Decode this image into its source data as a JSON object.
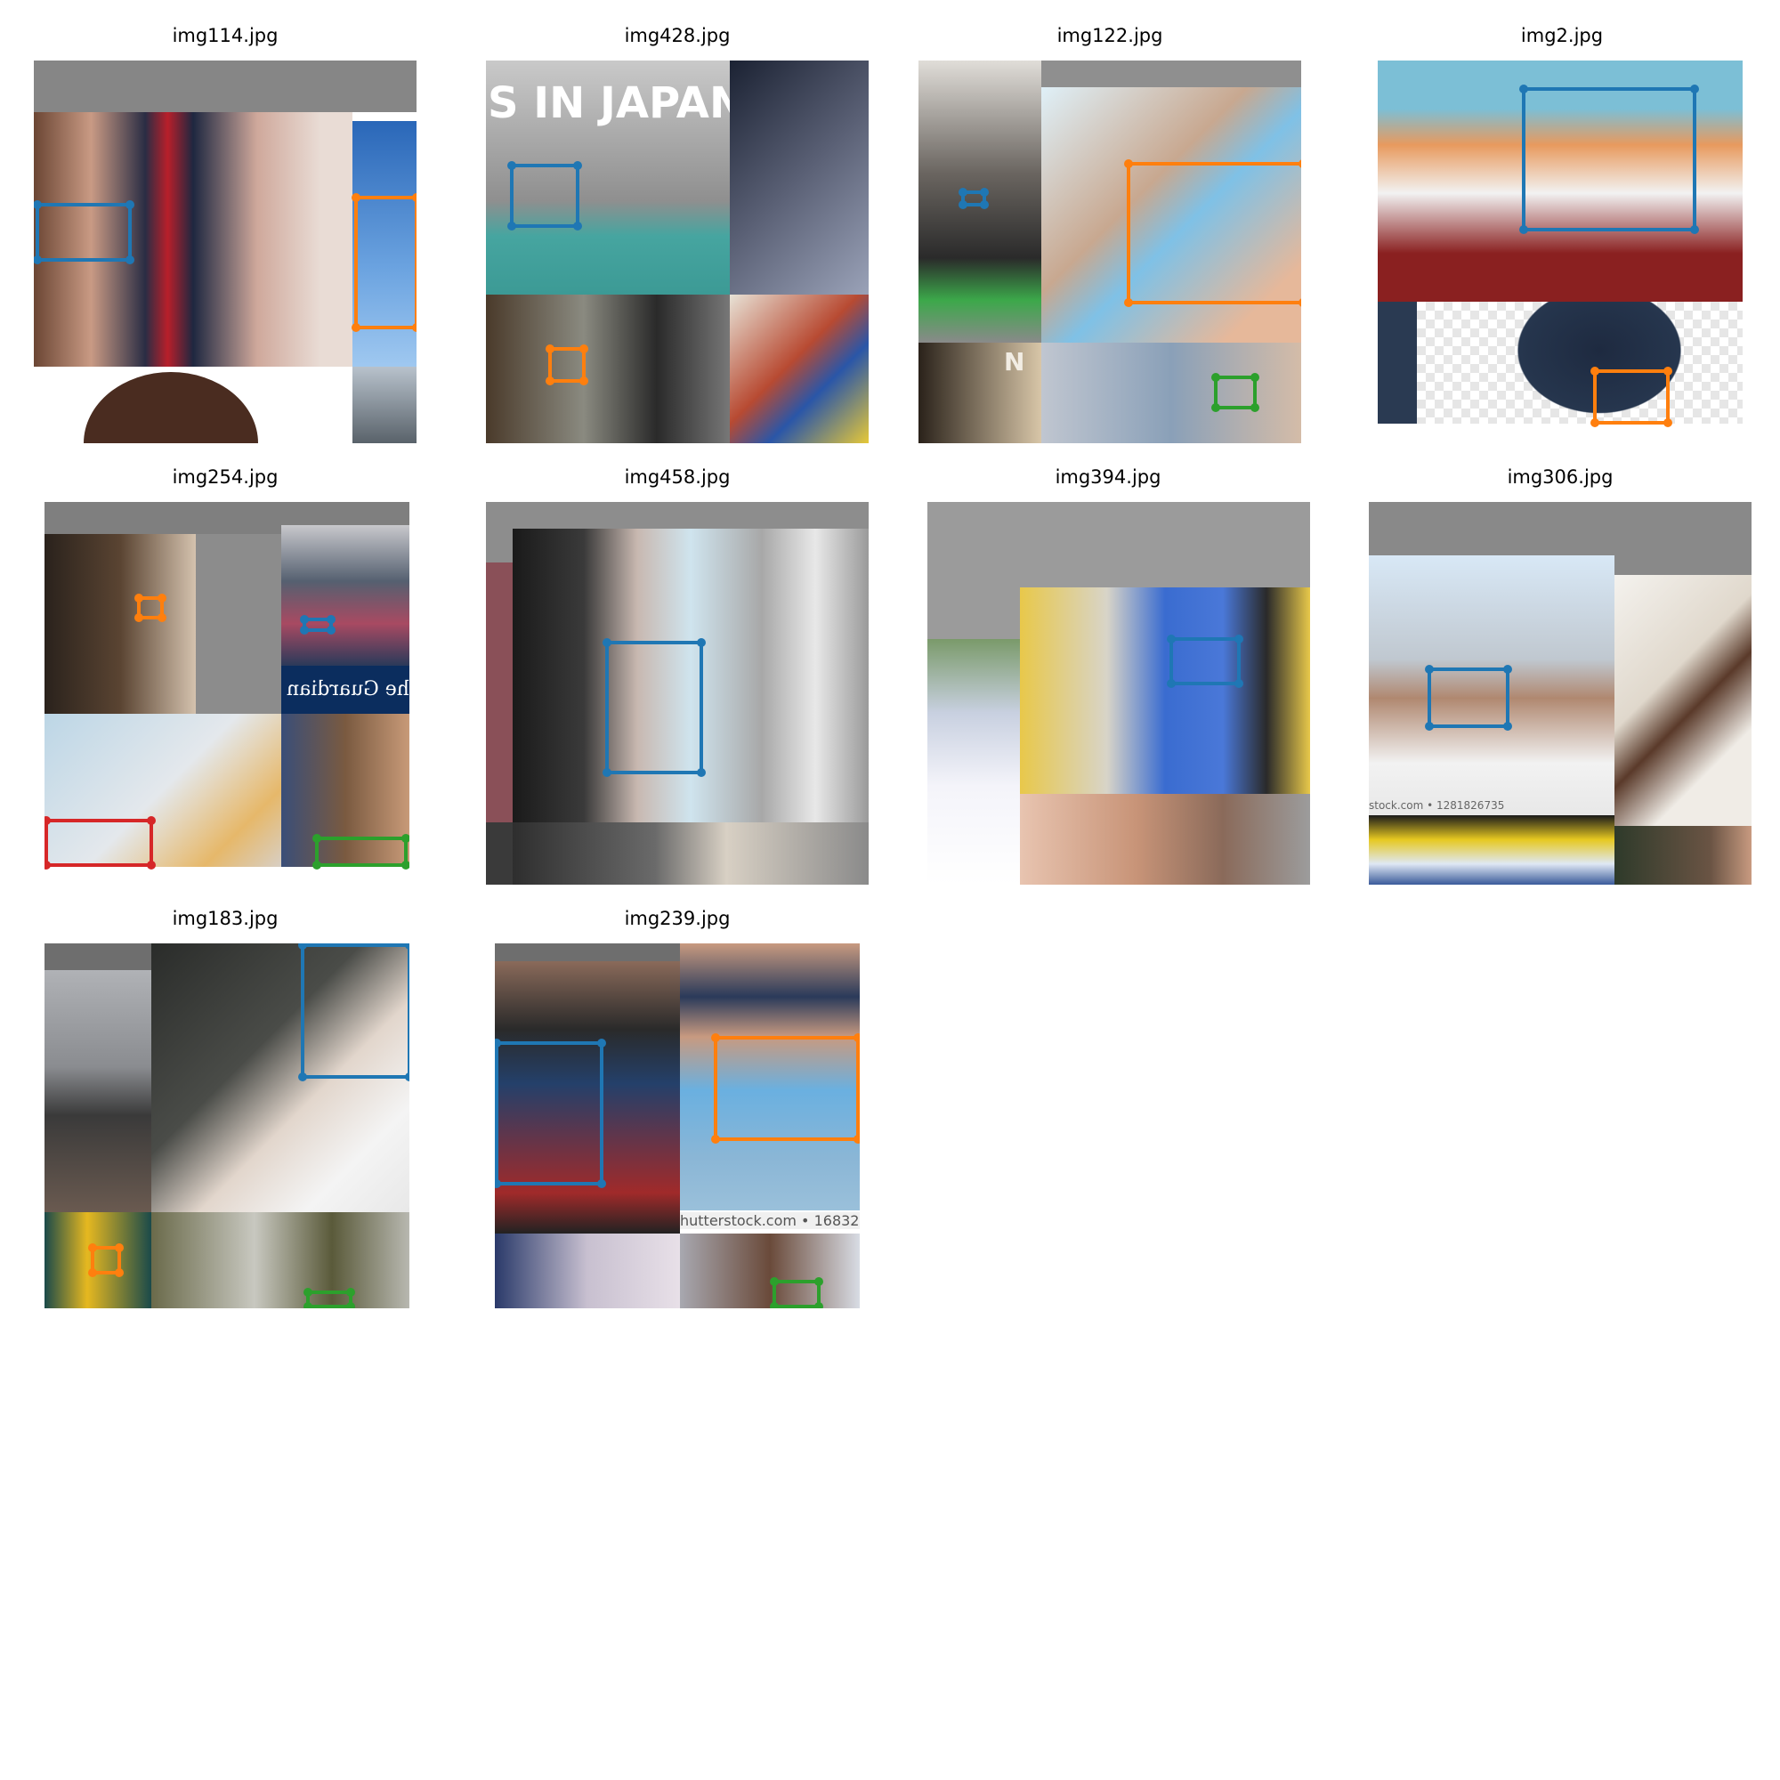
{
  "figure": {
    "panels": [
      {
        "title": "img114.jpg",
        "boxes": [
          "blue",
          "orange"
        ]
      },
      {
        "title": "img428.jpg",
        "boxes": [
          "blue",
          "orange"
        ],
        "overlay_text": "S IN JAPAN"
      },
      {
        "title": "img122.jpg",
        "boxes": [
          "blue",
          "orange",
          "green"
        ],
        "overlay_text": "N"
      },
      {
        "title": "img2.jpg",
        "boxes": [
          "blue",
          "orange"
        ]
      },
      {
        "title": "img254.jpg",
        "boxes": [
          "orange",
          "blue",
          "red",
          "green"
        ],
        "overlay_text": "The Guardian"
      },
      {
        "title": "img458.jpg",
        "boxes": [
          "blue"
        ]
      },
      {
        "title": "img394.jpg",
        "boxes": [
          "blue"
        ]
      },
      {
        "title": "img306.jpg",
        "boxes": [
          "blue"
        ],
        "overlay_text": "stock.com • 1281826735"
      },
      {
        "title": "img183.jpg",
        "boxes": [
          "blue",
          "orange",
          "green"
        ]
      },
      {
        "title": "img239.jpg",
        "boxes": [
          "blue",
          "orange",
          "green"
        ],
        "overlay_text": "hutterstock.com • 16832"
      }
    ],
    "colors": {
      "blue": "#1f77b4",
      "orange": "#ff7f0e",
      "green": "#2ca02c",
      "red": "#d62728"
    }
  }
}
